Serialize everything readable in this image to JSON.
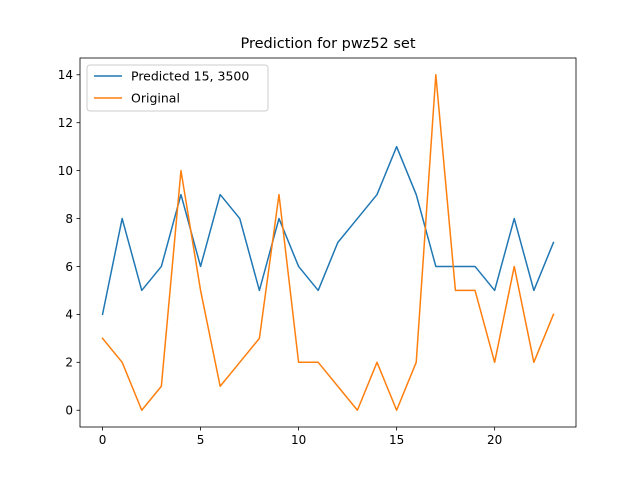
{
  "chart_data": {
    "type": "line",
    "title": "Prediction for pwz52 set",
    "xlabel": "",
    "ylabel": "",
    "x": [
      0,
      1,
      2,
      3,
      4,
      5,
      6,
      7,
      8,
      9,
      10,
      11,
      12,
      13,
      14,
      15,
      16,
      17,
      18,
      19,
      20,
      21,
      22,
      23
    ],
    "series": [
      {
        "name": "Predicted 15, 3500",
        "color": "#1f77b4",
        "values": [
          4,
          8,
          5,
          6,
          9,
          6,
          9,
          8,
          5,
          8,
          6,
          5,
          7,
          8,
          9,
          11,
          9,
          6,
          6,
          6,
          5,
          8,
          5,
          7
        ]
      },
      {
        "name": "Original",
        "color": "#ff7f0e",
        "values": [
          3,
          2,
          0,
          1,
          10,
          5,
          1,
          2,
          3,
          9,
          2,
          2,
          1,
          0,
          2,
          0,
          2,
          14,
          5,
          5,
          2,
          6,
          2,
          4
        ]
      }
    ],
    "xlim": [
      -1.15,
      24.15
    ],
    "ylim": [
      -0.7,
      14.7
    ],
    "xticks": [
      0,
      5,
      10,
      15,
      20
    ],
    "xtick_labels": [
      "0",
      "5",
      "10",
      "15",
      "20"
    ],
    "yticks": [
      0,
      2,
      4,
      6,
      8,
      10,
      12,
      14
    ],
    "ytick_labels": [
      "0",
      "2",
      "4",
      "6",
      "8",
      "10",
      "12",
      "14"
    ],
    "grid": false,
    "legend_position": "top-left"
  }
}
